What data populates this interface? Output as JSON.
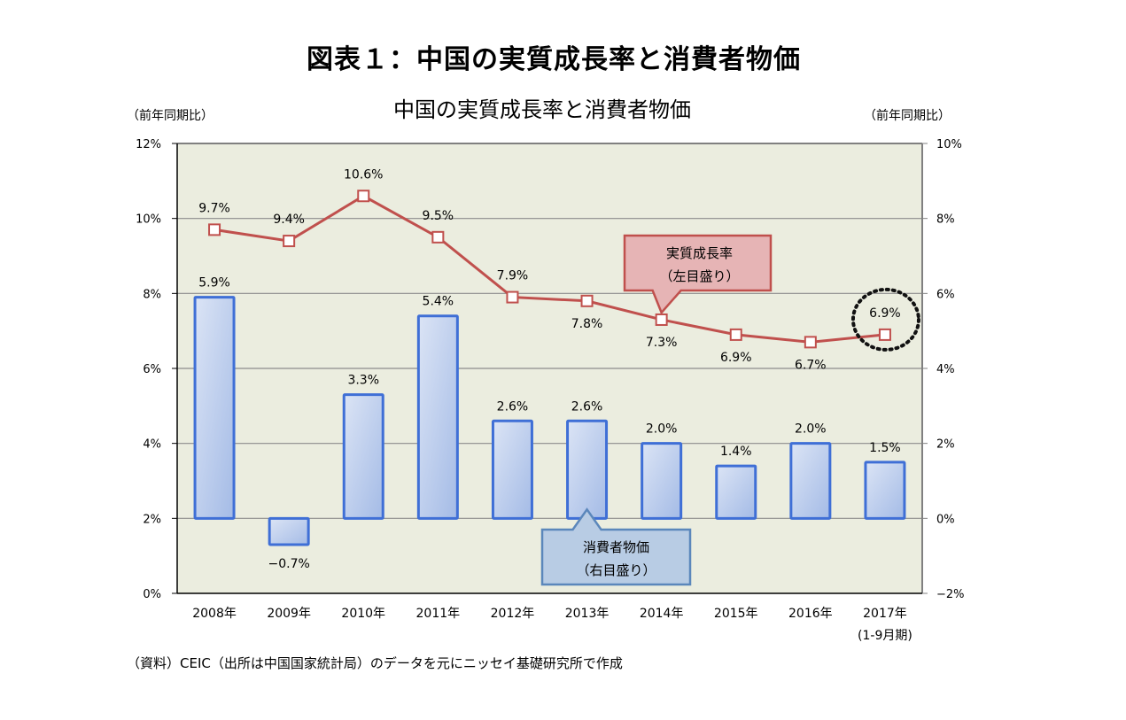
{
  "header": {
    "main_title": "図表１：中国の実質成長率と消費者物価"
  },
  "chart_data": {
    "type": "bar+line",
    "title": "中国の実質成長率と消費者物価",
    "left_axis_label": "（前年同期比）",
    "right_axis_label": "（前年同期比）",
    "categories": [
      "2008年",
      "2009年",
      "2010年",
      "2011年",
      "2012年",
      "2013年",
      "2014年",
      "2015年",
      "2016年",
      "2017年"
    ],
    "category_sublabels": [
      "",
      "",
      "",
      "",
      "",
      "",
      "",
      "",
      "",
      "(1-9月期)"
    ],
    "left_axis": {
      "min": 0,
      "max": 12,
      "step": 2,
      "tick_labels": [
        "0%",
        "2%",
        "4%",
        "6%",
        "8%",
        "10%",
        "12%"
      ]
    },
    "right_axis": {
      "min": -2,
      "max": 10,
      "step": 2,
      "tick_labels": [
        "−2%",
        "0%",
        "2%",
        "4%",
        "6%",
        "8%",
        "10%"
      ]
    },
    "grid": true,
    "series": [
      {
        "name": "実質成長率",
        "type": "line",
        "axis": "left",
        "values": [
          9.7,
          9.4,
          10.6,
          9.5,
          7.9,
          7.8,
          7.3,
          6.9,
          6.7,
          6.9
        ],
        "labels": [
          "9.7%",
          "9.4%",
          "10.6%",
          "9.5%",
          "7.9%",
          "7.8%",
          "7.3%",
          "6.9%",
          "6.7%",
          "6.9%"
        ],
        "color": "#c0504d"
      },
      {
        "name": "消費者物価",
        "type": "bar",
        "axis": "right",
        "values": [
          5.9,
          -0.7,
          3.3,
          5.4,
          2.6,
          2.6,
          2.0,
          1.4,
          2.0,
          1.5
        ],
        "labels": [
          "5.9%",
          "−0.7%",
          "3.3%",
          "5.4%",
          "2.6%",
          "2.6%",
          "2.0%",
          "1.4%",
          "2.0%",
          "1.5%"
        ],
        "color": "#3f6fd6"
      }
    ],
    "annotations": {
      "line_callout": [
        "実質成長率",
        "（左目盛り）"
      ],
      "bar_callout": [
        "消費者物価",
        "（右目盛り）"
      ],
      "highlight_index": 9
    },
    "colors": {
      "plot_bg": "#ebeddf",
      "line": "#c0504d",
      "bar_border": "#3f6fd6",
      "bar_fill_light": "#dbe4f5",
      "bar_fill_dark": "#a4bbe6",
      "line_callout_fill": "#e6b4b5",
      "line_callout_border": "#c0504d",
      "bar_callout_fill": "#b8cce4",
      "bar_callout_border": "#5b87bb"
    }
  },
  "footer": {
    "source": "（資料）CEIC（出所は中国国家統計局）のデータを元にニッセイ基礎研究所で作成"
  }
}
